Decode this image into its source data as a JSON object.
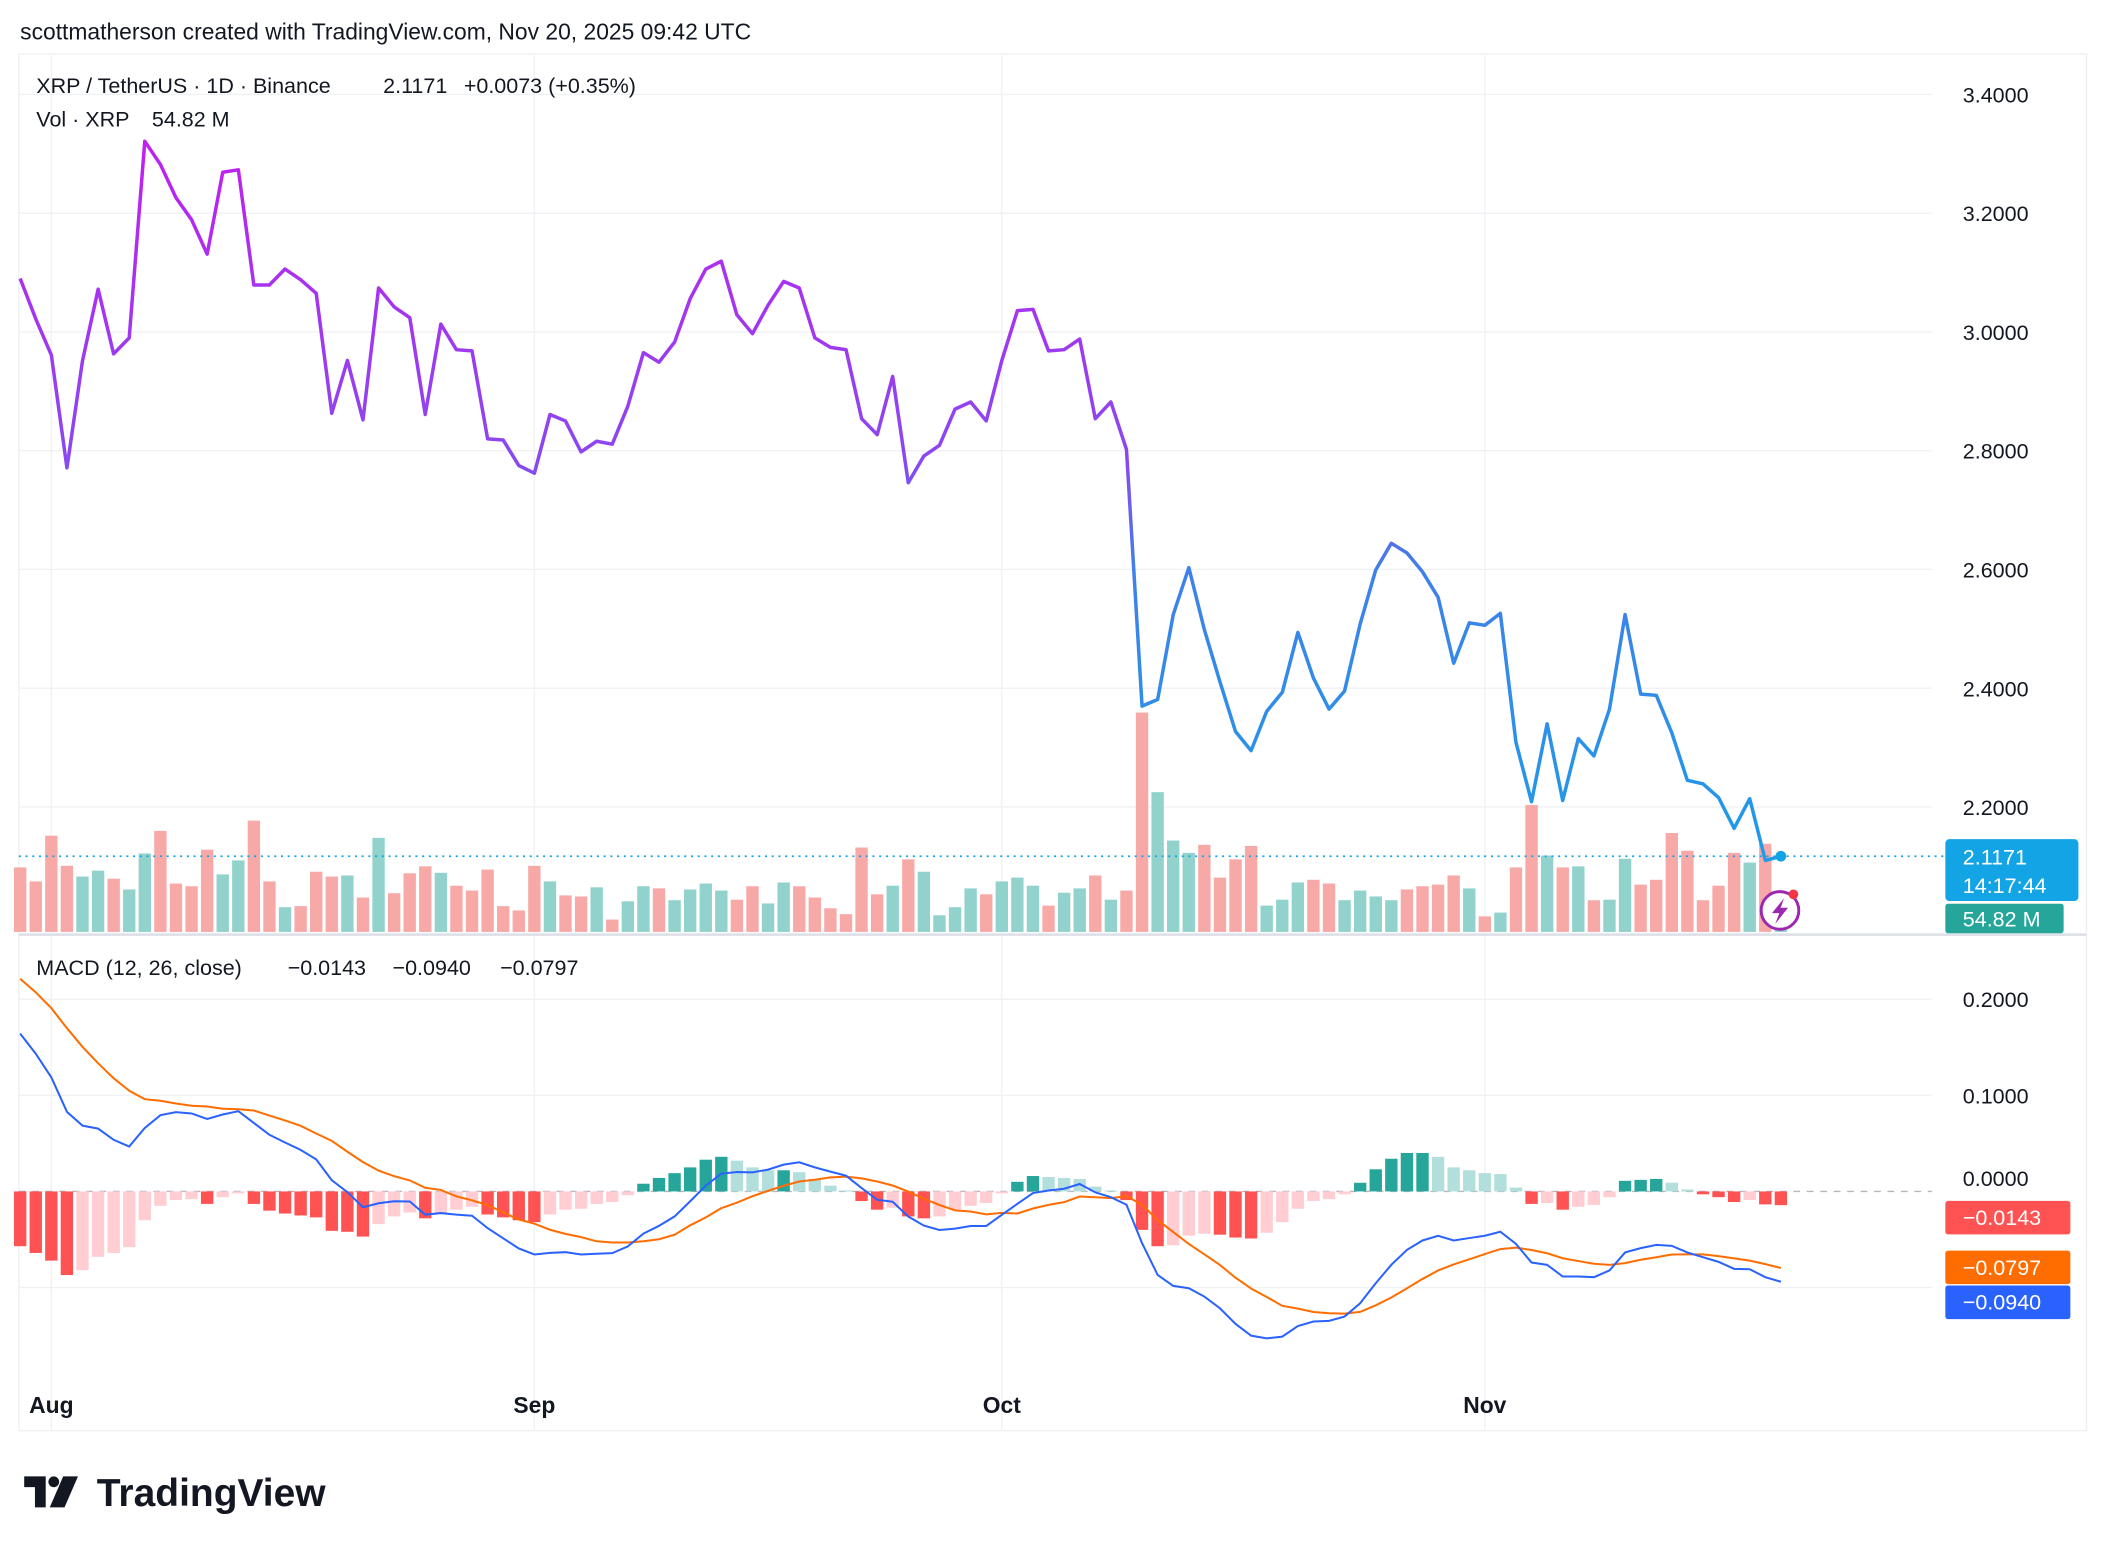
{
  "header": {
    "attribution": "scottmatherson created with TradingView.com, Nov 20, 2025 09:42 UTC"
  },
  "legend": {
    "symbol": "XRP / TetherUS · 1D · Binance",
    "last_price": "2.1171",
    "change": "+0.0073 (+0.35%)",
    "volume_label": "Vol · XRP",
    "volume_value": "54.82 M",
    "macd_label": "MACD (12, 26, close)",
    "macd_histogram": "−0.0143",
    "macd_value": "−0.0940",
    "macd_signal": "−0.0797"
  },
  "price_badge": {
    "price": "2.1171",
    "countdown": "14:17:44"
  },
  "volume_badge": "54.82 M",
  "macd_badges": {
    "histogram": "−0.0143",
    "signal": "−0.0797",
    "macd": "−0.0940"
  },
  "logo": {
    "text": "TradingView"
  },
  "colors": {
    "line_top": "#b620f2",
    "line_bottom": "#1e9ce8",
    "up_volume": "#92d2cc",
    "down_volume": "#f7a9a7",
    "hist_up_strong": "#26a69a",
    "hist_up_weak": "#b2dfdb",
    "hist_down_strong": "#ff5252",
    "hist_down_weak": "#ffcdd2",
    "macd_line": "#2962ff",
    "signal_line": "#ff6d00",
    "price_badge": "#13a4e6",
    "volume_badge": "#26a69a"
  },
  "chart_data": [
    {
      "type": "line",
      "title": "XRP / TetherUS · 1D · Binance",
      "ylabel": "",
      "ylim": [
        2.13,
        3.47
      ],
      "y_ticks": [
        "3.4000",
        "3.2000",
        "3.0000",
        "2.8000",
        "2.6000",
        "2.4000",
        "2.2000"
      ],
      "x_ticks": [
        {
          "label": "Aug",
          "date": "2025-08-01"
        },
        {
          "label": "Sep",
          "date": "2025-09-01"
        },
        {
          "label": "Oct",
          "date": "2025-10-01"
        },
        {
          "label": "Nov",
          "date": "2025-11-01"
        }
      ],
      "grid": true,
      "last_value_line": 2.1171,
      "dates": [
        "2025-07-30",
        "2025-07-31",
        "2025-08-01",
        "2025-08-02",
        "2025-08-03",
        "2025-08-04",
        "2025-08-05",
        "2025-08-06",
        "2025-08-07",
        "2025-08-08",
        "2025-08-09",
        "2025-08-10",
        "2025-08-11",
        "2025-08-12",
        "2025-08-13",
        "2025-08-14",
        "2025-08-15",
        "2025-08-16",
        "2025-08-17",
        "2025-08-18",
        "2025-08-19",
        "2025-08-20",
        "2025-08-21",
        "2025-08-22",
        "2025-08-23",
        "2025-08-24",
        "2025-08-25",
        "2025-08-26",
        "2025-08-27",
        "2025-08-28",
        "2025-08-29",
        "2025-08-30",
        "2025-08-31",
        "2025-09-01",
        "2025-09-02",
        "2025-09-03",
        "2025-09-04",
        "2025-09-05",
        "2025-09-06",
        "2025-09-07",
        "2025-09-08",
        "2025-09-09",
        "2025-09-10",
        "2025-09-11",
        "2025-09-12",
        "2025-09-13",
        "2025-09-14",
        "2025-09-15",
        "2025-09-16",
        "2025-09-17",
        "2025-09-18",
        "2025-09-19",
        "2025-09-20",
        "2025-09-21",
        "2025-09-22",
        "2025-09-23",
        "2025-09-24",
        "2025-09-25",
        "2025-09-26",
        "2025-09-27",
        "2025-09-28",
        "2025-09-29",
        "2025-09-30",
        "2025-10-01",
        "2025-10-02",
        "2025-10-03",
        "2025-10-04",
        "2025-10-05",
        "2025-10-06",
        "2025-10-07",
        "2025-10-08",
        "2025-10-09",
        "2025-10-10",
        "2025-10-11",
        "2025-10-12",
        "2025-10-13",
        "2025-10-14",
        "2025-10-15",
        "2025-10-16",
        "2025-10-17",
        "2025-10-18",
        "2025-10-19",
        "2025-10-20",
        "2025-10-21",
        "2025-10-22",
        "2025-10-23",
        "2025-10-24",
        "2025-10-25",
        "2025-10-26",
        "2025-10-27",
        "2025-10-28",
        "2025-10-29",
        "2025-10-30",
        "2025-10-31",
        "2025-11-01",
        "2025-11-02",
        "2025-11-03",
        "2025-11-04",
        "2025-11-05",
        "2025-11-06",
        "2025-11-07",
        "2025-11-08",
        "2025-11-09",
        "2025-11-10",
        "2025-11-11",
        "2025-11-12",
        "2025-11-13",
        "2025-11-14",
        "2025-11-15",
        "2025-11-16",
        "2025-11-17",
        "2025-11-18",
        "2025-11-19",
        "2025-11-20"
      ],
      "close": [
        3.09,
        3.022,
        2.961,
        2.771,
        2.952,
        3.072,
        2.963,
        2.99,
        3.321,
        3.282,
        3.226,
        3.189,
        3.131,
        3.269,
        3.273,
        3.079,
        3.079,
        3.106,
        3.088,
        3.065,
        2.863,
        2.952,
        2.852,
        3.074,
        3.042,
        3.024,
        2.861,
        3.013,
        2.97,
        2.968,
        2.82,
        2.818,
        2.775,
        2.762,
        2.861,
        2.85,
        2.798,
        2.816,
        2.811,
        2.875,
        2.965,
        2.949,
        2.983,
        3.056,
        3.106,
        3.119,
        3.029,
        2.997,
        3.045,
        3.085,
        3.074,
        2.99,
        2.974,
        2.97,
        2.854,
        2.827,
        2.925,
        2.746,
        2.791,
        2.809,
        2.87,
        2.882,
        2.85,
        2.952,
        3.036,
        3.038,
        2.968,
        2.97,
        2.988,
        2.854,
        2.882,
        2.802,
        2.37,
        2.381,
        2.524,
        2.603,
        2.499,
        2.411,
        2.327,
        2.295,
        2.361,
        2.393,
        2.494,
        2.417,
        2.365,
        2.395,
        2.508,
        2.599,
        2.644,
        2.628,
        2.596,
        2.553,
        2.442,
        2.51,
        2.506,
        2.526,
        2.309,
        2.209,
        2.34,
        2.211,
        2.315,
        2.286,
        2.365,
        2.524,
        2.39,
        2.388,
        2.325,
        2.245,
        2.239,
        2.216,
        2.164,
        2.214,
        2.11,
        2.1171
      ],
      "volume_unit": "M",
      "volume": [
        120,
        94,
        179,
        123,
        103,
        114,
        99,
        79,
        146,
        188,
        90,
        85,
        153,
        107,
        133,
        207,
        94,
        46,
        48,
        112,
        103,
        105,
        64,
        175,
        72,
        109,
        122,
        110,
        86,
        77,
        116,
        48,
        40,
        123,
        94,
        68,
        66,
        83,
        23,
        57,
        85,
        81,
        59,
        79,
        90,
        77,
        60,
        85,
        53,
        92,
        85,
        64,
        44,
        33,
        157,
        70,
        86,
        135,
        112,
        31,
        46,
        81,
        70,
        94,
        101,
        86,
        49,
        73,
        81,
        105,
        60,
        77,
        408,
        260,
        170,
        147,
        162,
        101,
        135,
        160,
        49,
        60,
        92,
        97,
        90,
        59,
        77,
        66,
        59,
        79,
        85,
        88,
        105,
        81,
        29,
        36,
        120,
        236,
        142,
        120,
        122,
        59,
        60,
        136,
        88,
        97,
        184,
        151,
        59,
        86,
        147,
        129,
        164,
        54.82
      ],
      "volume_direction": [
        "down",
        "down",
        "down",
        "down",
        "up",
        "up",
        "down",
        "up",
        "up",
        "down",
        "down",
        "down",
        "down",
        "up",
        "up",
        "down",
        "down",
        "up",
        "down",
        "down",
        "down",
        "up",
        "down",
        "up",
        "down",
        "down",
        "down",
        "up",
        "down",
        "down",
        "down",
        "down",
        "down",
        "down",
        "up",
        "down",
        "down",
        "up",
        "down",
        "up",
        "up",
        "down",
        "up",
        "up",
        "up",
        "up",
        "down",
        "down",
        "up",
        "up",
        "down",
        "down",
        "down",
        "down",
        "down",
        "down",
        "up",
        "down",
        "up",
        "up",
        "up",
        "up",
        "down",
        "up",
        "up",
        "up",
        "down",
        "up",
        "up",
        "down",
        "up",
        "down",
        "down",
        "up",
        "up",
        "up",
        "down",
        "down",
        "down",
        "down",
        "up",
        "up",
        "up",
        "down",
        "down",
        "up",
        "up",
        "up",
        "up",
        "down",
        "down",
        "down",
        "down",
        "up",
        "down",
        "up",
        "down",
        "down",
        "up",
        "down",
        "up",
        "down",
        "up",
        "up",
        "down",
        "down",
        "down",
        "down",
        "down",
        "down",
        "down",
        "up",
        "down",
        "up"
      ]
    },
    {
      "type": "line",
      "title": "MACD (12, 26, close)",
      "y_ticks": [
        "0.2000",
        "0.1000",
        "0.0000"
      ],
      "ylim": [
        -0.155,
        0.225
      ],
      "grid": true,
      "series": [
        {
          "name": "MACD",
          "values": [
            0.1642,
            0.1432,
            0.1186,
            0.0828,
            0.0684,
            0.0653,
            0.0537,
            0.0467,
            0.066,
            0.0793,
            0.0825,
            0.0811,
            0.0754,
            0.08,
            0.0835,
            0.0712,
            0.0589,
            0.0509,
            0.0432,
            0.0333,
            0.0116,
            -0.0007,
            -0.0165,
            -0.0123,
            -0.0102,
            -0.0105,
            -0.0242,
            -0.0225,
            -0.0242,
            -0.0253,
            -0.0382,
            -0.0488,
            -0.0593,
            -0.0656,
            -0.0639,
            -0.0632,
            -0.0656,
            -0.0649,
            -0.0642,
            -0.0572,
            -0.0439,
            -0.0358,
            -0.026,
            -0.0102,
            0.006,
            0.0185,
            0.0202,
            0.0199,
            0.0226,
            0.0279,
            0.0303,
            0.0251,
            0.0206,
            0.0164,
            0.0035,
            -0.0087,
            -0.0108,
            -0.0261,
            -0.0355,
            -0.0401,
            -0.0387,
            -0.0359,
            -0.0359,
            -0.0244,
            -0.0129,
            -0.0017,
            0.001,
            0.0028,
            0.0077,
            -0.001,
            -0.006,
            -0.0139,
            -0.0538,
            -0.0868,
            -0.0983,
            -0.1007,
            -0.1094,
            -0.1215,
            -0.1378,
            -0.15,
            -0.1528,
            -0.151,
            -0.14,
            -0.1354,
            -0.1347,
            -0.1302,
            -0.1163,
            -0.0955,
            -0.0764,
            -0.0608,
            -0.051,
            -0.0462,
            -0.051,
            -0.0486,
            -0.0462,
            -0.042,
            -0.0545,
            -0.074,
            -0.0764,
            -0.0885,
            -0.0885,
            -0.0892,
            -0.0823,
            -0.0635,
            -0.059,
            -0.0556,
            -0.0566,
            -0.0635,
            -0.0684,
            -0.0733,
            -0.0806,
            -0.081,
            -0.0892,
            -0.094
          ]
        },
        {
          "name": "Signal",
          "values": [
            0.2212,
            0.2072,
            0.1906,
            0.1698,
            0.1504,
            0.1333,
            0.1177,
            0.1047,
            0.096,
            0.0943,
            0.0915,
            0.0891,
            0.0884,
            0.086,
            0.0855,
            0.0842,
            0.0789,
            0.0739,
            0.0682,
            0.0603,
            0.0526,
            0.0413,
            0.0305,
            0.0217,
            0.0158,
            0.0115,
            0.0038,
            0.0015,
            -0.0052,
            -0.0093,
            -0.0142,
            -0.0218,
            -0.0293,
            -0.0336,
            -0.0399,
            -0.0442,
            -0.0476,
            -0.0519,
            -0.0532,
            -0.0532,
            -0.0519,
            -0.0498,
            -0.045,
            -0.0352,
            -0.027,
            -0.0175,
            -0.0118,
            -0.0051,
            0.0006,
            0.0059,
            0.0103,
            0.0121,
            0.0146,
            0.0154,
            0.0135,
            0.0103,
            0.0062,
            -0.0001,
            -0.0075,
            -0.0141,
            -0.0197,
            -0.0209,
            -0.0239,
            -0.0224,
            -0.0229,
            -0.0177,
            -0.014,
            -0.0112,
            -0.0053,
            -0.006,
            -0.007,
            -0.0049,
            -0.0138,
            -0.0298,
            -0.0423,
            -0.0547,
            -0.0654,
            -0.0765,
            -0.0898,
            -0.101,
            -0.1098,
            -0.119,
            -0.122,
            -0.1254,
            -0.1267,
            -0.1272,
            -0.1253,
            -0.1185,
            -0.1104,
            -0.1008,
            -0.091,
            -0.0822,
            -0.076,
            -0.0706,
            -0.0652,
            -0.06,
            -0.0585,
            -0.061,
            -0.0644,
            -0.0695,
            -0.0725,
            -0.0752,
            -0.0763,
            -0.0745,
            -0.071,
            -0.0686,
            -0.0656,
            -0.0655,
            -0.0654,
            -0.0673,
            -0.0696,
            -0.072,
            -0.0757,
            -0.0797
          ]
        },
        {
          "name": "Histogram",
          "values": [
            -0.057,
            -0.064,
            -0.072,
            -0.087,
            -0.082,
            -0.068,
            -0.064,
            -0.058,
            -0.03,
            -0.015,
            -0.009,
            -0.008,
            -0.013,
            -0.006,
            -0.002,
            -0.013,
            -0.02,
            -0.023,
            -0.025,
            -0.027,
            -0.041,
            -0.042,
            -0.047,
            -0.034,
            -0.026,
            -0.022,
            -0.028,
            -0.024,
            -0.019,
            -0.016,
            -0.024,
            -0.027,
            -0.03,
            -0.032,
            -0.024,
            -0.019,
            -0.018,
            -0.013,
            -0.011,
            -0.004,
            0.008,
            0.014,
            0.019,
            0.025,
            0.033,
            0.036,
            0.032,
            0.025,
            0.022,
            0.022,
            0.02,
            0.013,
            0.006,
            0.001,
            -0.01,
            -0.019,
            -0.017,
            -0.026,
            -0.028,
            -0.026,
            -0.019,
            -0.015,
            -0.012,
            -0.002,
            0.01,
            0.016,
            0.015,
            0.014,
            0.013,
            0.005,
            0.001,
            -0.009,
            -0.04,
            -0.057,
            -0.056,
            -0.046,
            -0.044,
            -0.045,
            -0.048,
            -0.049,
            -0.043,
            -0.032,
            -0.018,
            -0.01,
            -0.008,
            -0.003,
            0.009,
            0.023,
            0.034,
            0.04,
            0.04,
            0.036,
            0.025,
            0.022,
            0.019,
            0.018,
            0.004,
            -0.013,
            -0.012,
            -0.019,
            -0.016,
            -0.014,
            -0.006,
            0.011,
            0.012,
            0.013,
            0.009,
            0.002,
            -0.003,
            -0.006,
            -0.011,
            -0.009,
            -0.0135,
            -0.0143
          ]
        }
      ]
    }
  ]
}
